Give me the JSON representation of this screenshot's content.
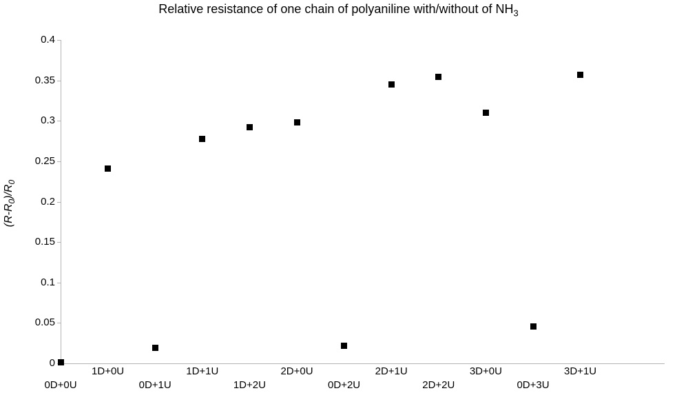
{
  "title": {
    "text": "Relative resistance of one chain of polyaniline with/without of NH",
    "subscript": "3"
  },
  "y_axis_label": {
    "part1": "(R-R",
    "sub1": "0",
    "part2": ")/R",
    "sub2": "0"
  },
  "chart_data": {
    "type": "scatter",
    "title": "Relative resistance of one chain of polyaniline with/without of NH3",
    "categories": [
      "0D+0U",
      "1D+0U",
      "0D+1U",
      "1D+1U",
      "1D+2U",
      "2D+0U",
      "0D+2U",
      "2D+1U",
      "2D+2U",
      "3D+0U",
      "0D+3U",
      "3D+1U"
    ],
    "values": [
      0.001,
      0.241,
      0.019,
      0.278,
      0.292,
      0.298,
      0.022,
      0.345,
      0.354,
      0.31,
      0.046,
      0.357
    ],
    "xlabel": "",
    "ylabel": "(R-R0)/R0",
    "ylim": [
      0,
      0.4
    ],
    "yticks": [
      0,
      0.05,
      0.1,
      0.15,
      0.2,
      0.25,
      0.3,
      0.35,
      0.4
    ],
    "ytick_labels": [
      "0",
      "0.05",
      "0.1",
      "0.15",
      "0.2",
      "0.25",
      "0.3",
      "0.35",
      "0.4"
    ],
    "grid": false,
    "legend": "none",
    "marker": {
      "shape": "square",
      "size": 9,
      "color": "#000000"
    },
    "axis_color": "#b3b3b3",
    "x_label_rows": [
      "bottom",
      "top",
      "bottom",
      "top",
      "bottom",
      "top",
      "bottom",
      "top",
      "bottom",
      "top",
      "bottom",
      "top"
    ]
  }
}
